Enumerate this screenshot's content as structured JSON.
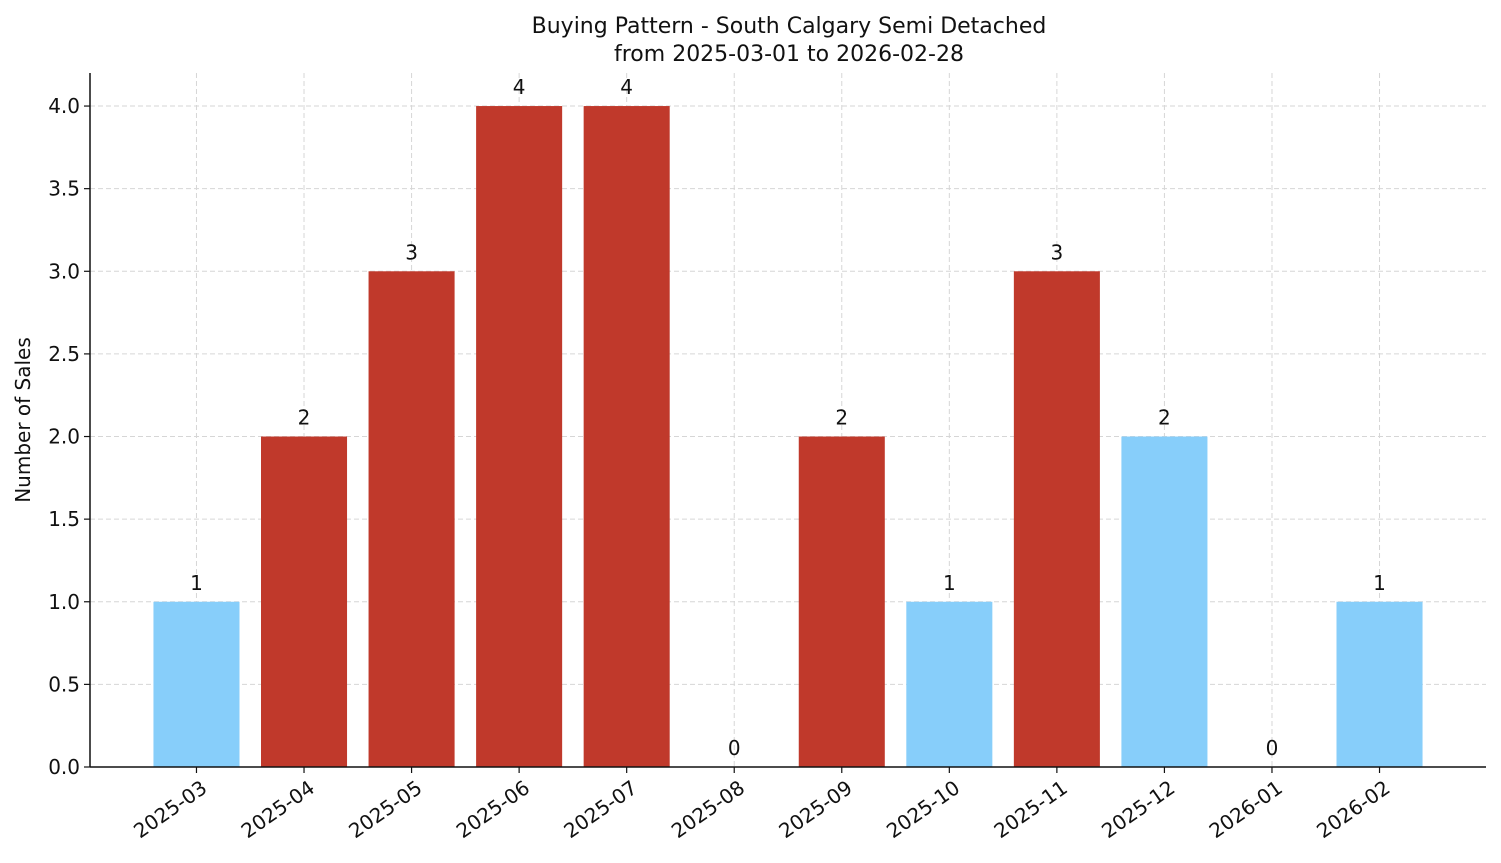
{
  "chart_data": {
    "type": "bar",
    "title": "Buying Pattern - South Calgary Semi Detached",
    "subtitle": "from 2025-03-01 to 2026-02-28",
    "y_label": "Number of Sales",
    "categories": [
      "2025-03",
      "2025-04",
      "2025-05",
      "2025-06",
      "2025-07",
      "2025-08",
      "2025-09",
      "2025-10",
      "2025-11",
      "2025-12",
      "2026-01",
      "2026-02"
    ],
    "values": [
      1,
      2,
      3,
      4,
      4,
      0,
      2,
      1,
      3,
      2,
      0,
      1
    ],
    "colors": [
      "#87cefa",
      "#c0392b",
      "#c0392b",
      "#c0392b",
      "#c0392b",
      "#87cefa",
      "#c0392b",
      "#87cefa",
      "#c0392b",
      "#87cefa",
      "#87cefa",
      "#87cefa"
    ],
    "ylim": [
      0,
      4.2
    ],
    "yticks": [
      {
        "value": 0,
        "label": "0.0"
      },
      {
        "value": 0.5,
        "label": "0.5"
      },
      {
        "value": 1,
        "label": "1.0"
      },
      {
        "value": 1.5,
        "label": "1.5"
      },
      {
        "value": 2,
        "label": "2.0"
      },
      {
        "value": 2.5,
        "label": "2.5"
      },
      {
        "value": 3,
        "label": "3.0"
      },
      {
        "value": 3.5,
        "label": "3.5"
      },
      {
        "value": 4,
        "label": "4.0"
      }
    ],
    "grid": true
  }
}
